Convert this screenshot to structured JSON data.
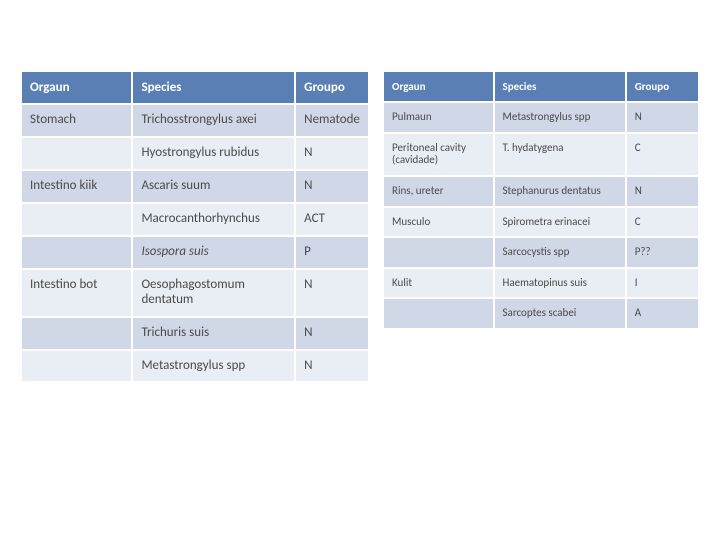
{
  "colors": {
    "header_bg": "#5a7fb5",
    "row_light": "#e9edf4",
    "row_dark": "#d0d8e7",
    "header_text": "#ffffff",
    "cell_text": "#4a4a4a"
  },
  "leftTable": {
    "columns": [
      "Orgaun",
      "Species",
      "Groupo"
    ],
    "col_widths": [
      "32%",
      "47%",
      "21%"
    ],
    "rows": [
      {
        "shade": "dark",
        "cells": [
          "Stomach",
          "Trichosstrongylus axei",
          "Nematode"
        ]
      },
      {
        "shade": "light",
        "cells": [
          "",
          "Hyostrongylus rubidus",
          "N"
        ]
      },
      {
        "shade": "dark",
        "cells": [
          "Intestino kiik",
          "Ascaris suum",
          "N"
        ]
      },
      {
        "shade": "light",
        "cells": [
          "",
          "Macrocanthorhynchus",
          "ACT"
        ]
      },
      {
        "shade": "dark",
        "cells": [
          "",
          "Isospora suis",
          "P"
        ],
        "italic": [
          false,
          true,
          false
        ]
      },
      {
        "shade": "light",
        "cells": [
          "Intestino bot",
          "Oesophagostomum dentatum",
          "N"
        ]
      },
      {
        "shade": "dark",
        "cells": [
          "",
          "Trichuris suis",
          "N"
        ]
      },
      {
        "shade": "light",
        "cells": [
          "",
          "Metastrongylus spp",
          "N"
        ]
      }
    ]
  },
  "rightTable": {
    "columns": [
      "Orgaun",
      "Species",
      "Groupo"
    ],
    "col_widths": [
      "35%",
      "42%",
      "23%"
    ],
    "rows": [
      {
        "shade": "dark",
        "cells": [
          "Pulmaun",
          "Metastrongylus spp",
          "N"
        ]
      },
      {
        "shade": "light",
        "cells": [
          "Peritoneal cavity (cavidade)",
          "T. hydatygena",
          "C"
        ]
      },
      {
        "shade": "dark",
        "cells": [
          "Rins, ureter",
          "Stephanurus dentatus",
          "N"
        ]
      },
      {
        "shade": "light",
        "cells": [
          "Musculo",
          "Spirometra erinacei",
          "C"
        ]
      },
      {
        "shade": "dark",
        "cells": [
          "",
          "Sarcocystis spp",
          "P??"
        ]
      },
      {
        "shade": "light",
        "cells": [
          "Kulit",
          "Haematopinus suis",
          "I"
        ]
      },
      {
        "shade": "dark",
        "cells": [
          "",
          "Sarcoptes scabei",
          "A"
        ]
      }
    ]
  }
}
